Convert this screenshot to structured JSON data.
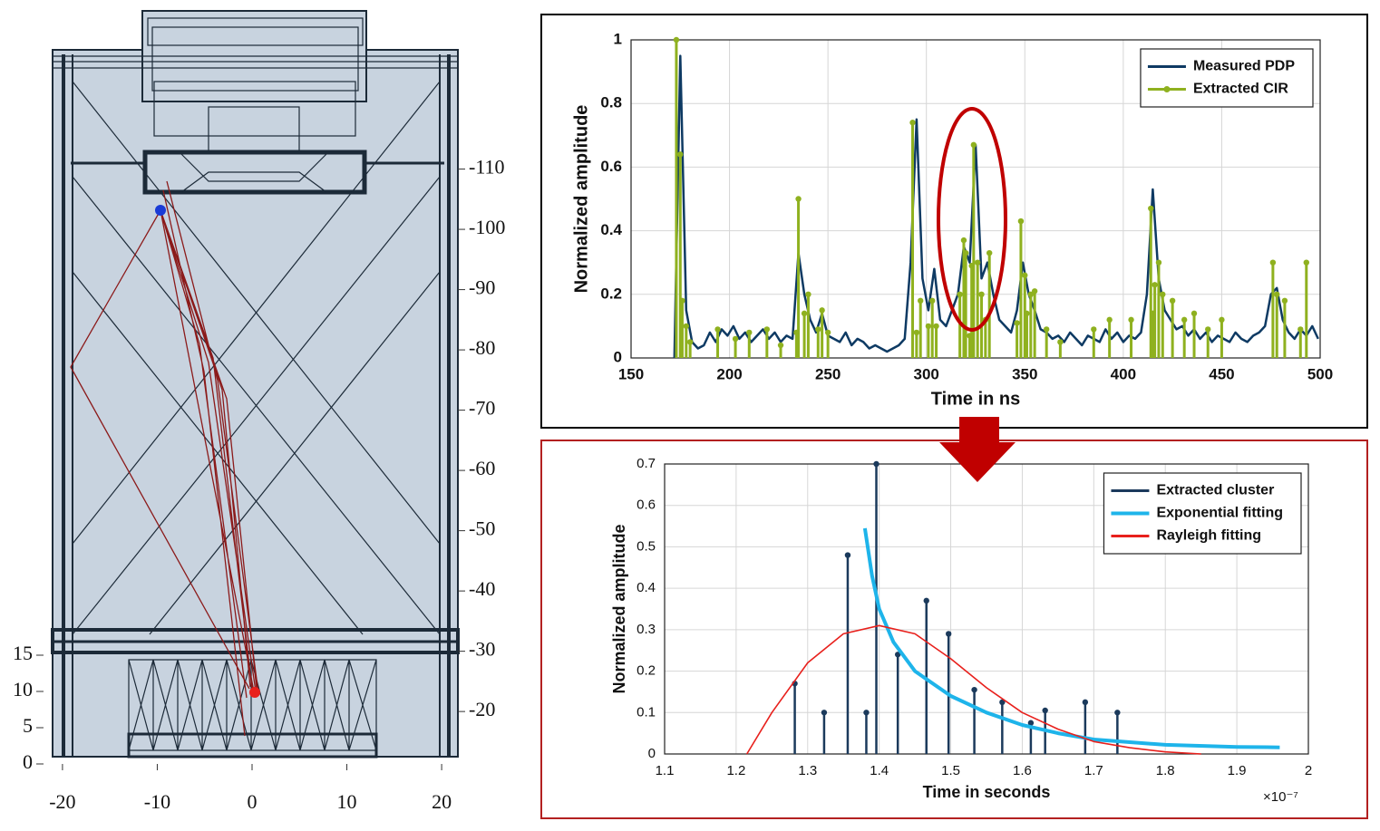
{
  "chart_data": [
    {
      "type": "scatter",
      "xlim": [
        -22,
        22
      ],
      "xticks": [
        -20,
        -10,
        0,
        10,
        20
      ],
      "ylim": [
        0,
        104
      ],
      "yticks": [
        0,
        5,
        10,
        15
      ],
      "y2lim": [
        -11.3,
        -136.4
      ],
      "y2ticks": [
        -20,
        -30,
        -40,
        -50,
        -60,
        -70,
        -80,
        -90,
        -100,
        -110
      ]
    },
    {
      "type": "line",
      "xlabel": "Time in ns",
      "ylabel": "Normalized amplitude",
      "xlim": [
        150,
        500
      ],
      "xticks": [
        150,
        200,
        250,
        300,
        350,
        400,
        450,
        500
      ],
      "ylim": [
        0,
        1
      ],
      "yticks": [
        0,
        0.2,
        0.4,
        0.6,
        0.8,
        1
      ],
      "grid": true,
      "legend": "upper right",
      "series": [
        {
          "name": "Measured PDP",
          "color": "#0e3a63",
          "style": "line",
          "linewidth": 2.5,
          "x": [
            172,
            175,
            178,
            181,
            184,
            187,
            190,
            193,
            196,
            199,
            202,
            205,
            208,
            211,
            214,
            217,
            220,
            223,
            226,
            229,
            232,
            235,
            238,
            241,
            244,
            247,
            250,
            253,
            256,
            259,
            262,
            265,
            268,
            271,
            274,
            277,
            280,
            283,
            286,
            289,
            292,
            295,
            298,
            301,
            304,
            307,
            310,
            313,
            316,
            319,
            322,
            325,
            328,
            331,
            334,
            337,
            340,
            343,
            346,
            349,
            352,
            355,
            358,
            361,
            364,
            367,
            370,
            373,
            376,
            379,
            382,
            385,
            388,
            391,
            394,
            397,
            400,
            403,
            406,
            409,
            412,
            415,
            418,
            421,
            424,
            427,
            430,
            433,
            436,
            439,
            442,
            445,
            448,
            451,
            454,
            457,
            460,
            463,
            466,
            469,
            472,
            475,
            478,
            481,
            484,
            487,
            490,
            493,
            496,
            499
          ],
          "values": [
            0.0,
            0.95,
            0.15,
            0.05,
            0.03,
            0.04,
            0.08,
            0.05,
            0.09,
            0.07,
            0.1,
            0.06,
            0.08,
            0.05,
            0.07,
            0.09,
            0.06,
            0.08,
            0.05,
            0.07,
            0.06,
            0.33,
            0.2,
            0.12,
            0.08,
            0.14,
            0.07,
            0.06,
            0.05,
            0.08,
            0.04,
            0.06,
            0.05,
            0.03,
            0.04,
            0.03,
            0.02,
            0.03,
            0.04,
            0.06,
            0.3,
            0.75,
            0.25,
            0.15,
            0.28,
            0.12,
            0.1,
            0.15,
            0.2,
            0.35,
            0.3,
            0.67,
            0.25,
            0.3,
            0.2,
            0.12,
            0.1,
            0.08,
            0.15,
            0.3,
            0.2,
            0.15,
            0.09,
            0.08,
            0.06,
            0.07,
            0.05,
            0.08,
            0.06,
            0.04,
            0.07,
            0.06,
            0.05,
            0.09,
            0.06,
            0.08,
            0.05,
            0.07,
            0.06,
            0.08,
            0.2,
            0.53,
            0.25,
            0.15,
            0.12,
            0.09,
            0.1,
            0.07,
            0.09,
            0.06,
            0.08,
            0.05,
            0.07,
            0.06,
            0.05,
            0.08,
            0.06,
            0.05,
            0.07,
            0.08,
            0.1,
            0.2,
            0.22,
            0.12,
            0.08,
            0.06,
            0.09,
            0.07,
            0.1,
            0.06
          ]
        },
        {
          "name": "Extracted CIR",
          "color": "#8fb11f",
          "style": "stem",
          "linewidth": 3,
          "x": [
            173,
            175,
            176,
            178,
            180,
            194,
            203,
            210,
            219,
            226,
            234,
            235,
            238,
            240,
            245,
            247,
            250,
            293,
            295,
            297,
            301,
            303,
            305,
            317,
            319,
            320,
            322,
            323,
            324,
            326,
            328,
            330,
            332,
            346,
            348,
            350,
            351,
            353,
            355,
            361,
            368,
            385,
            393,
            404,
            414,
            415,
            416,
            418,
            420,
            425,
            431,
            436,
            443,
            450,
            476,
            478,
            482,
            490,
            493
          ],
          "values": [
            1,
            0.64,
            0.18,
            0.1,
            0.05,
            0.09,
            0.06,
            0.08,
            0.09,
            0.04,
            0.08,
            0.5,
            0.14,
            0.2,
            0.09,
            0.15,
            0.08,
            0.74,
            0.08,
            0.18,
            0.1,
            0.18,
            0.1,
            0.2,
            0.37,
            0.33,
            0.07,
            0.29,
            0.67,
            0.3,
            0.2,
            0.12,
            0.33,
            0.11,
            0.43,
            0.26,
            0.14,
            0.2,
            0.21,
            0.09,
            0.05,
            0.09,
            0.12,
            0.12,
            0.47,
            0.14,
            0.23,
            0.3,
            0.2,
            0.18,
            0.12,
            0.14,
            0.09,
            0.12,
            0.3,
            0.2,
            0.18,
            0.09,
            0.3
          ]
        }
      ]
    },
    {
      "type": "line",
      "xlabel": "Time in seconds",
      "ylabel": "Normalized amplitude",
      "x_scale": "×10⁻⁷",
      "xlim": [
        1.1,
        2
      ],
      "xticks": [
        1.1,
        1.2,
        1.3,
        1.4,
        1.5,
        1.6,
        1.7,
        1.8,
        1.9,
        2
      ],
      "ylim": [
        0,
        0.7
      ],
      "yticks": [
        0,
        0.1,
        0.2,
        0.3,
        0.4,
        0.5,
        0.6,
        0.7
      ],
      "grid": true,
      "legend": "upper right",
      "series": [
        {
          "name": "Extracted cluster",
          "color": "#1b3a5c",
          "style": "stem",
          "linewidth": 2.5,
          "x": [
            1.282,
            1.323,
            1.356,
            1.382,
            1.396,
            1.426,
            1.466,
            1.497,
            1.533,
            1.572,
            1.612,
            1.632,
            1.688,
            1.733
          ],
          "values": [
            0.17,
            0.1,
            0.48,
            0.1,
            0.7,
            0.24,
            0.37,
            0.29,
            0.155,
            0.125,
            0.075,
            0.105,
            0.125,
            0.1
          ]
        },
        {
          "name": "Exponential fitting",
          "color": "#1eb4ea",
          "style": "line",
          "linewidth": 4,
          "x": [
            1.38,
            1.39,
            1.4,
            1.42,
            1.45,
            1.5,
            1.55,
            1.6,
            1.65,
            1.7,
            1.8,
            1.9,
            1.96
          ],
          "values": [
            0.545,
            0.43,
            0.35,
            0.27,
            0.2,
            0.14,
            0.1,
            0.07,
            0.05,
            0.035,
            0.022,
            0.017,
            0.016
          ]
        },
        {
          "name": "Rayleigh fitting",
          "color": "#e8201c",
          "style": "line",
          "linewidth": 1.6,
          "x": [
            1.215,
            1.25,
            1.3,
            1.35,
            1.4,
            1.45,
            1.5,
            1.55,
            1.6,
            1.65,
            1.7,
            1.75,
            1.8,
            1.85
          ],
          "values": [
            0,
            0.1,
            0.22,
            0.29,
            0.31,
            0.29,
            0.23,
            0.16,
            0.1,
            0.06,
            0.03,
            0.015,
            0.005,
            0
          ]
        }
      ]
    }
  ]
}
